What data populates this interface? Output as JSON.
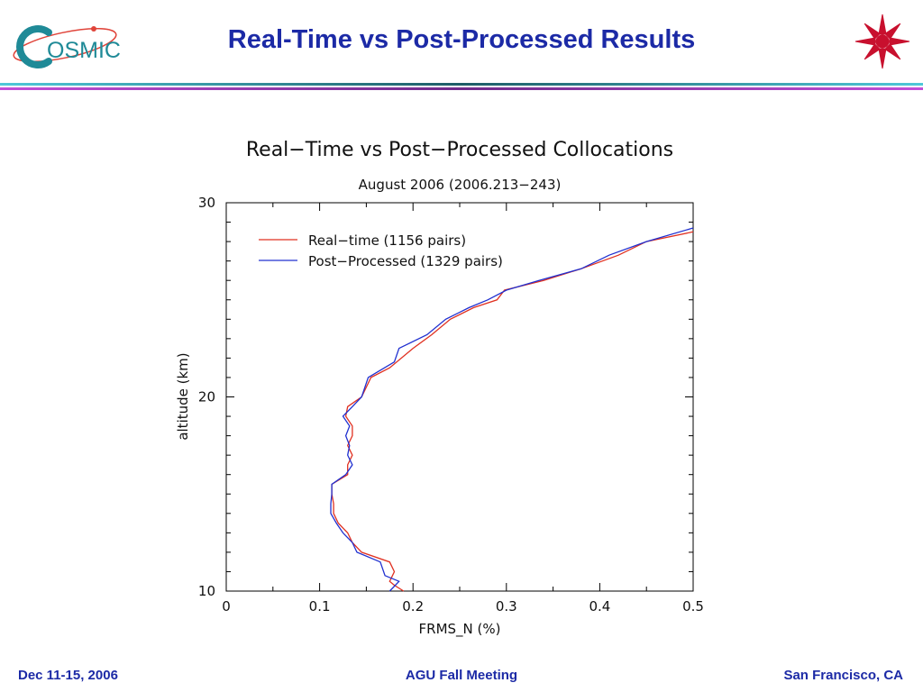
{
  "header": {
    "logo_text": "OSMIC",
    "title": "Real-Time vs Post-Processed Results"
  },
  "colors": {
    "title": "#1c2aa6",
    "real_time": "#e03020",
    "post_processed": "#2030d0",
    "logo_right": "#c8102e"
  },
  "chart_data": {
    "type": "line",
    "title": "Real−Time vs Post−Processed Collocations",
    "subtitle": "August 2006 (2006.213−243)",
    "xlabel": "FRMS_N (%)",
    "ylabel": "altitude (km)",
    "xlim": [
      0,
      0.5
    ],
    "ylim": [
      10,
      30
    ],
    "xticks": [
      "0",
      "0.1",
      "0.2",
      "0.3",
      "0.4",
      "0.5"
    ],
    "yticks": [
      "10",
      "20",
      "30"
    ],
    "legend_position": "top-left",
    "series": [
      {
        "name": "Real−time (1156 pairs)",
        "color": "#e03020",
        "points": [
          [
            0.19,
            10.0
          ],
          [
            0.18,
            10.3
          ],
          [
            0.175,
            10.5
          ],
          [
            0.18,
            11.0
          ],
          [
            0.175,
            11.5
          ],
          [
            0.145,
            12.0
          ],
          [
            0.135,
            12.5
          ],
          [
            0.13,
            13.0
          ],
          [
            0.12,
            13.5
          ],
          [
            0.115,
            14.0
          ],
          [
            0.115,
            14.5
          ],
          [
            0.113,
            15.0
          ],
          [
            0.113,
            15.5
          ],
          [
            0.13,
            16.0
          ],
          [
            0.13,
            16.5
          ],
          [
            0.135,
            17.0
          ],
          [
            0.13,
            17.5
          ],
          [
            0.135,
            18.0
          ],
          [
            0.135,
            18.5
          ],
          [
            0.128,
            19.0
          ],
          [
            0.13,
            19.5
          ],
          [
            0.145,
            20.0
          ],
          [
            0.155,
            21.0
          ],
          [
            0.175,
            21.5
          ],
          [
            0.2,
            22.5
          ],
          [
            0.22,
            23.2
          ],
          [
            0.24,
            24.0
          ],
          [
            0.265,
            24.6
          ],
          [
            0.29,
            25.0
          ],
          [
            0.298,
            25.5
          ],
          [
            0.34,
            26.0
          ],
          [
            0.38,
            26.6
          ],
          [
            0.42,
            27.3
          ],
          [
            0.45,
            28.0
          ],
          [
            0.5,
            28.5
          ]
        ]
      },
      {
        "name": "Post−Processed (1329 pairs)",
        "color": "#2030d0",
        "points": [
          [
            0.175,
            10.0
          ],
          [
            0.185,
            10.5
          ],
          [
            0.17,
            10.8
          ],
          [
            0.165,
            11.5
          ],
          [
            0.14,
            12.0
          ],
          [
            0.135,
            12.5
          ],
          [
            0.125,
            13.0
          ],
          [
            0.118,
            13.5
          ],
          [
            0.112,
            14.0
          ],
          [
            0.112,
            14.5
          ],
          [
            0.113,
            15.0
          ],
          [
            0.113,
            15.5
          ],
          [
            0.128,
            16.0
          ],
          [
            0.135,
            16.5
          ],
          [
            0.13,
            17.0
          ],
          [
            0.132,
            17.5
          ],
          [
            0.128,
            18.0
          ],
          [
            0.132,
            18.5
          ],
          [
            0.125,
            19.0
          ],
          [
            0.135,
            19.5
          ],
          [
            0.145,
            20.0
          ],
          [
            0.152,
            21.0
          ],
          [
            0.18,
            21.8
          ],
          [
            0.185,
            22.5
          ],
          [
            0.215,
            23.2
          ],
          [
            0.235,
            24.0
          ],
          [
            0.26,
            24.6
          ],
          [
            0.28,
            25.0
          ],
          [
            0.3,
            25.5
          ],
          [
            0.335,
            26.0
          ],
          [
            0.38,
            26.6
          ],
          [
            0.41,
            27.3
          ],
          [
            0.45,
            28.0
          ],
          [
            0.5,
            28.7
          ]
        ]
      }
    ]
  },
  "footer": {
    "left": "Dec 11-15, 2006",
    "center": "AGU Fall Meeting",
    "right": "San Francisco, CA"
  }
}
